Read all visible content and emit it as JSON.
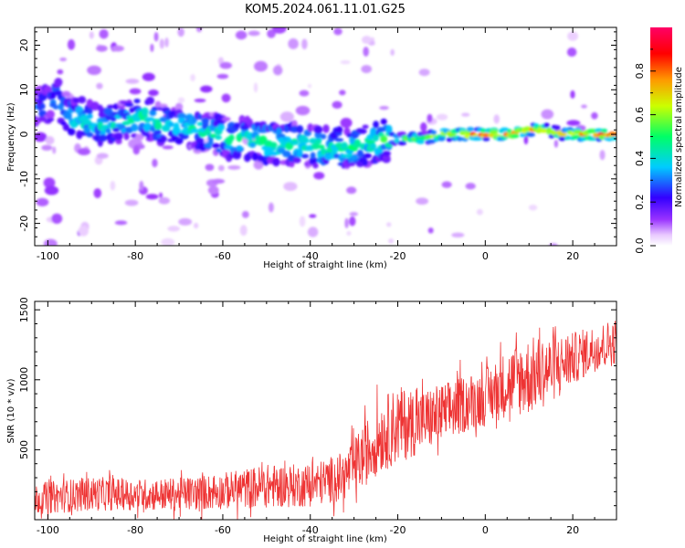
{
  "title": "KOM5.2024.061.11.01.G25",
  "chart_data": [
    {
      "type": "heatmap",
      "xlabel": "Height of straight line (km)",
      "ylabel": "Frequency (Hz)",
      "xlim": [
        -103,
        30
      ],
      "ylim": [
        -25,
        24
      ],
      "xticks": [
        -100,
        -80,
        -60,
        -40,
        -20,
        0,
        20
      ],
      "yticks": [
        -20,
        -10,
        0,
        10,
        20
      ],
      "colorbar": {
        "label": "Normalized spectral amplitude",
        "range": [
          0,
          1
        ],
        "ticks": [
          "0.0",
          "0.2",
          "0.4",
          "0.6",
          "0.8"
        ],
        "colormap": [
          "#ffffff",
          "#e8c8ff",
          "#9933ff",
          "#3300ff",
          "#00ccff",
          "#00ff66",
          "#ccff00",
          "#ff9900",
          "#ff0000",
          "#ff0066"
        ]
      },
      "ridge": [
        {
          "x": -102,
          "y": 6,
          "a": 0.3
        },
        {
          "x": -98,
          "y": 8,
          "a": 0.35
        },
        {
          "x": -95,
          "y": 4,
          "a": 0.4
        },
        {
          "x": -91,
          "y": 3,
          "a": 0.45
        },
        {
          "x": -87,
          "y": 2,
          "a": 0.4
        },
        {
          "x": -82,
          "y": 3,
          "a": 0.4
        },
        {
          "x": -78,
          "y": 4,
          "a": 0.45
        },
        {
          "x": -74,
          "y": 2,
          "a": 0.4
        },
        {
          "x": -70,
          "y": 2,
          "a": 0.4
        },
        {
          "x": -66,
          "y": 1,
          "a": 0.4
        },
        {
          "x": -62,
          "y": 0,
          "a": 0.45
        },
        {
          "x": -58,
          "y": -1,
          "a": 0.45
        },
        {
          "x": -54,
          "y": -1,
          "a": 0.45
        },
        {
          "x": -50,
          "y": -2,
          "a": 0.5
        },
        {
          "x": -46,
          "y": -2,
          "a": 0.45
        },
        {
          "x": -42,
          "y": -2,
          "a": 0.45
        },
        {
          "x": -38,
          "y": -3,
          "a": 0.45
        },
        {
          "x": -34,
          "y": -3,
          "a": 0.45
        },
        {
          "x": -30,
          "y": -3,
          "a": 0.45
        },
        {
          "x": -26,
          "y": -2,
          "a": 0.45
        },
        {
          "x": -22,
          "y": -1,
          "a": 0.5
        },
        {
          "x": -18,
          "y": -1,
          "a": 0.55
        },
        {
          "x": -14,
          "y": -1,
          "a": 0.6
        },
        {
          "x": -10,
          "y": 0,
          "a": 0.65
        },
        {
          "x": -6,
          "y": 0,
          "a": 0.8
        },
        {
          "x": -2,
          "y": 0,
          "a": 0.85
        },
        {
          "x": 2,
          "y": 0,
          "a": 0.85
        },
        {
          "x": 6,
          "y": 0,
          "a": 0.8
        },
        {
          "x": 10,
          "y": 1,
          "a": 0.75
        },
        {
          "x": 14,
          "y": 1,
          "a": 0.7
        },
        {
          "x": 18,
          "y": 0,
          "a": 0.7
        },
        {
          "x": 22,
          "y": 0,
          "a": 0.85
        },
        {
          "x": 26,
          "y": 0,
          "a": 0.9
        },
        {
          "x": 30,
          "y": 0,
          "a": 0.85
        }
      ]
    },
    {
      "type": "line",
      "xlabel": "Height of straight line (km)",
      "ylabel": "SNR (10 * v/v)",
      "xlim": [
        -103,
        30
      ],
      "ylim": [
        0,
        1560
      ],
      "xticks": [
        -100,
        -80,
        -60,
        -40,
        -20,
        0,
        20
      ],
      "yticks": [
        500,
        1000,
        1500
      ],
      "series_color": "#ee3333",
      "envelope": [
        {
          "x": -103,
          "lo": 0,
          "hi": 300
        },
        {
          "x": -90,
          "lo": 20,
          "hi": 350
        },
        {
          "x": -80,
          "lo": 30,
          "hi": 330
        },
        {
          "x": -70,
          "lo": 20,
          "hi": 340
        },
        {
          "x": -60,
          "lo": 30,
          "hi": 380
        },
        {
          "x": -50,
          "lo": 30,
          "hi": 450
        },
        {
          "x": -40,
          "lo": 40,
          "hi": 450
        },
        {
          "x": -32,
          "lo": 80,
          "hi": 550
        },
        {
          "x": -28,
          "lo": 150,
          "hi": 750
        },
        {
          "x": -24,
          "lo": 250,
          "hi": 950
        },
        {
          "x": -20,
          "lo": 300,
          "hi": 1050
        },
        {
          "x": -15,
          "lo": 400,
          "hi": 1000
        },
        {
          "x": -10,
          "lo": 450,
          "hi": 1050
        },
        {
          "x": -5,
          "lo": 550,
          "hi": 1100
        },
        {
          "x": 0,
          "lo": 600,
          "hi": 1150
        },
        {
          "x": 5,
          "lo": 650,
          "hi": 1300
        },
        {
          "x": 10,
          "lo": 650,
          "hi": 1400
        },
        {
          "x": 15,
          "lo": 750,
          "hi": 1400
        },
        {
          "x": 20,
          "lo": 900,
          "hi": 1400
        },
        {
          "x": 25,
          "lo": 1000,
          "hi": 1450
        },
        {
          "x": 30,
          "lo": 1050,
          "hi": 1500
        }
      ]
    }
  ]
}
